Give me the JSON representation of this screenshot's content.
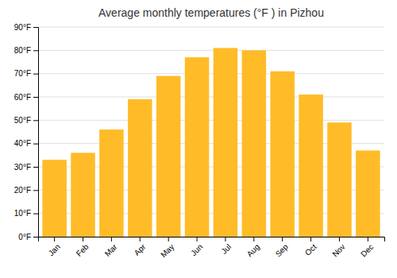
{
  "chart_data": {
    "type": "bar",
    "title": "Average monthly temperatures (°F ) in Pizhou",
    "categories": [
      "Jan",
      "Feb",
      "Mar",
      "Apr",
      "May",
      "Jun",
      "Jul",
      "Aug",
      "Sep",
      "Oct",
      "Nov",
      "Dec"
    ],
    "values": [
      33,
      36,
      46,
      59,
      69,
      77,
      81,
      80,
      71,
      61,
      49,
      37
    ],
    "color": "#FFBC28",
    "ylim": [
      0,
      90
    ],
    "yticks": [
      {
        "value": 0,
        "label": "0°F"
      },
      {
        "value": 10,
        "label": "10°F"
      },
      {
        "value": 20,
        "label": "20°F"
      },
      {
        "value": 30,
        "label": "30°F"
      },
      {
        "value": 40,
        "label": "40°F"
      },
      {
        "value": 50,
        "label": "50°F"
      },
      {
        "value": 60,
        "label": "60°F"
      },
      {
        "value": 70,
        "label": "70°F"
      },
      {
        "value": 80,
        "label": "80°F"
      },
      {
        "value": 90,
        "label": "90°F"
      }
    ],
    "grid": true
  }
}
